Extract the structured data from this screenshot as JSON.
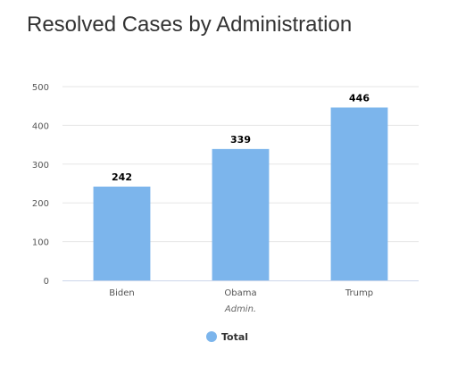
{
  "chart_data": {
    "type": "bar",
    "title": "Resolved Cases by Administration",
    "xlabel": "Admin.",
    "ylabel": "",
    "categories": [
      "Biden",
      "Obama",
      "Trump"
    ],
    "series": [
      {
        "name": "Total",
        "values": [
          242,
          339,
          446
        ],
        "color": "#7cb5ec"
      }
    ],
    "ylim": [
      0,
      500
    ],
    "yticks": [
      0,
      100,
      200,
      300,
      400,
      500
    ],
    "grid": true,
    "legend": "bottom-center",
    "data_labels": true
  }
}
